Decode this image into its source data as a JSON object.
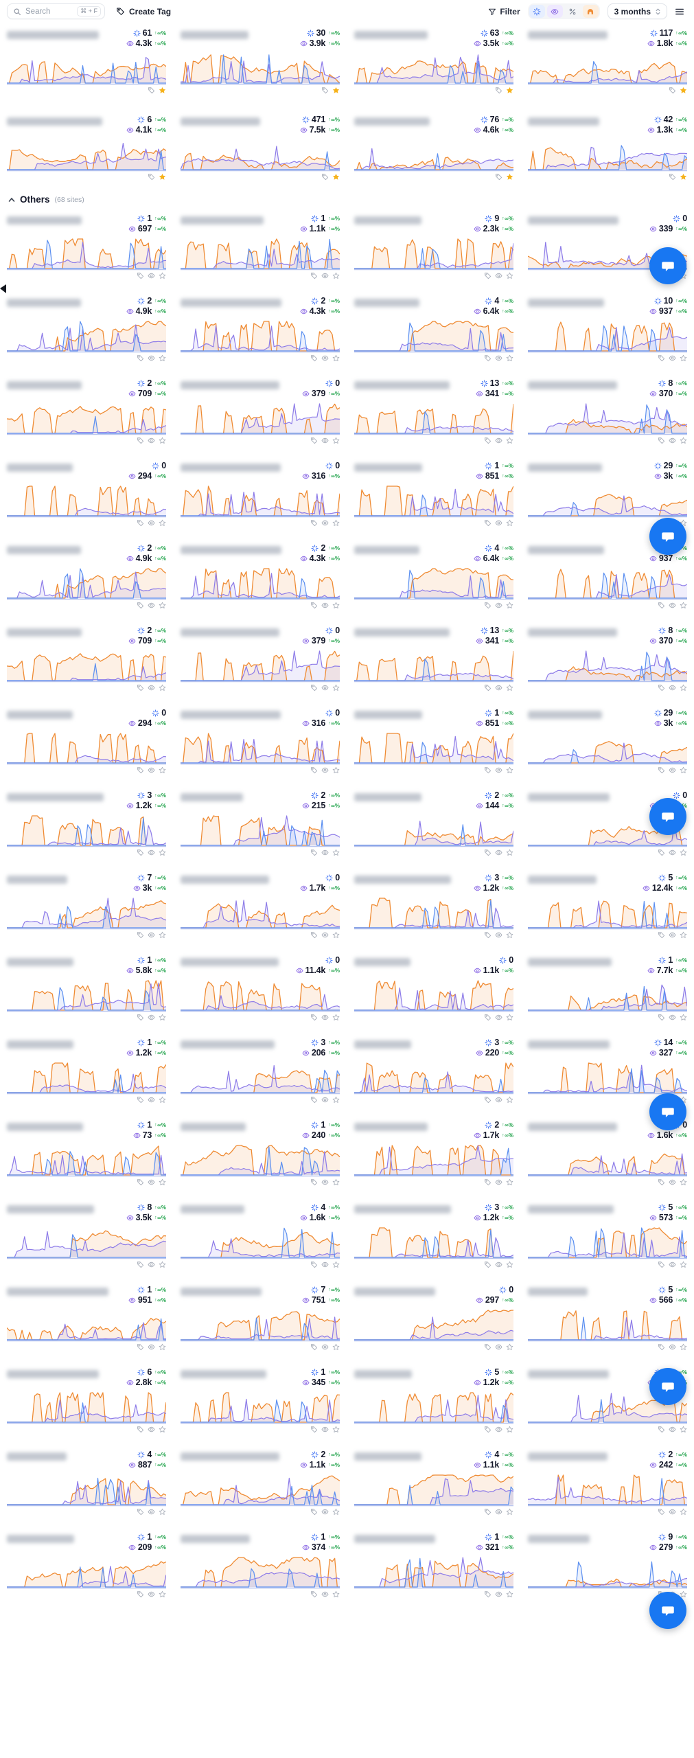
{
  "topbar": {
    "search": {
      "placeholder": "Search",
      "shortcut": "⌘ + F"
    },
    "create_tag_label": "Create Tag",
    "filter_label": "Filter",
    "view_toggles": [
      {
        "name": "sparkle-clicks",
        "color": "#4b7bf5",
        "bg": "#e7efff",
        "active": true
      },
      {
        "name": "eye-views",
        "color": "#8d6ce5",
        "bg": "#efe9ff",
        "active": true
      },
      {
        "name": "percent",
        "color": "#7c8494",
        "bg": "",
        "active": false
      },
      {
        "name": "crown",
        "color": "#ef8b33",
        "bg": "#fdeede",
        "active": true
      }
    ],
    "period_label": "3 months"
  },
  "meta": {
    "delta_arrow": "↑",
    "delta_value": "∞%",
    "delta_color": "#1fa24a"
  },
  "favorites": {
    "cards": [
      {
        "clicks": "61",
        "views": "4.3k"
      },
      {
        "clicks": "30",
        "views": "3.9k"
      },
      {
        "clicks": "63",
        "views": "3.5k"
      },
      {
        "clicks": "117",
        "views": "1.8k"
      },
      {
        "clicks": "6",
        "views": "4.1k"
      },
      {
        "clicks": "471",
        "views": "7.5k"
      },
      {
        "clicks": "76",
        "views": "4.6k"
      },
      {
        "clicks": "42",
        "views": "1.3k"
      }
    ]
  },
  "others": {
    "title": "Others",
    "count_label": "(68 sites)",
    "cards": [
      {
        "clicks": "1",
        "views": "697"
      },
      {
        "clicks": "1",
        "views": "1.1k"
      },
      {
        "clicks": "9",
        "views": "2.3k"
      },
      {
        "clicks": "0",
        "views": "339"
      },
      {
        "clicks": "2",
        "views": "4.9k"
      },
      {
        "clicks": "2",
        "views": "4.3k"
      },
      {
        "clicks": "4",
        "views": "6.4k"
      },
      {
        "clicks": "10",
        "views": "937"
      },
      {
        "clicks": "2",
        "views": "709"
      },
      {
        "clicks": "0",
        "views": "379"
      },
      {
        "clicks": "13",
        "views": "341"
      },
      {
        "clicks": "8",
        "views": "370"
      },
      {
        "clicks": "0",
        "views": "294"
      },
      {
        "clicks": "0",
        "views": "316"
      },
      {
        "clicks": "1",
        "views": "851"
      },
      {
        "clicks": "29",
        "views": "3k"
      },
      {
        "clicks": "2",
        "views": "4.9k"
      },
      {
        "clicks": "2",
        "views": "4.3k"
      },
      {
        "clicks": "4",
        "views": "6.4k"
      },
      {
        "clicks": "10",
        "views": "937"
      },
      {
        "clicks": "2",
        "views": "709"
      },
      {
        "clicks": "0",
        "views": "379"
      },
      {
        "clicks": "13",
        "views": "341"
      },
      {
        "clicks": "8",
        "views": "370"
      },
      {
        "clicks": "0",
        "views": "294"
      },
      {
        "clicks": "0",
        "views": "316"
      },
      {
        "clicks": "1",
        "views": "851"
      },
      {
        "clicks": "29",
        "views": "3k"
      },
      {
        "clicks": "3",
        "views": "1.2k"
      },
      {
        "clicks": "2",
        "views": "215"
      },
      {
        "clicks": "2",
        "views": "144"
      },
      {
        "clicks": "0",
        "views": "278"
      },
      {
        "clicks": "7",
        "views": "3k"
      },
      {
        "clicks": "0",
        "views": "1.7k"
      },
      {
        "clicks": "3",
        "views": "1.2k"
      },
      {
        "clicks": "5",
        "views": "12.4k"
      },
      {
        "clicks": "1",
        "views": "5.8k"
      },
      {
        "clicks": "0",
        "views": "11.4k"
      },
      {
        "clicks": "0",
        "views": "1.1k"
      },
      {
        "clicks": "1",
        "views": "7.7k"
      },
      {
        "clicks": "1",
        "views": "1.2k"
      },
      {
        "clicks": "3",
        "views": "206"
      },
      {
        "clicks": "3",
        "views": "220"
      },
      {
        "clicks": "14",
        "views": "327"
      },
      {
        "clicks": "1",
        "views": "73"
      },
      {
        "clicks": "1",
        "views": "240"
      },
      {
        "clicks": "2",
        "views": "1.7k"
      },
      {
        "clicks": "0",
        "views": "1.6k"
      },
      {
        "clicks": "8",
        "views": "3.5k"
      },
      {
        "clicks": "4",
        "views": "1.6k"
      },
      {
        "clicks": "3",
        "views": "1.2k"
      },
      {
        "clicks": "5",
        "views": "573"
      },
      {
        "clicks": "1",
        "views": "951"
      },
      {
        "clicks": "7",
        "views": "751"
      },
      {
        "clicks": "0",
        "views": "297"
      },
      {
        "clicks": "5",
        "views": "566"
      },
      {
        "clicks": "6",
        "views": "2.8k"
      },
      {
        "clicks": "1",
        "views": "345"
      },
      {
        "clicks": "5",
        "views": "1.2k"
      },
      {
        "clicks": "16",
        "views": "1.5k"
      },
      {
        "clicks": "4",
        "views": "887"
      },
      {
        "clicks": "2",
        "views": "1.1k"
      },
      {
        "clicks": "4",
        "views": "1.1k"
      },
      {
        "clicks": "2",
        "views": "242"
      },
      {
        "clicks": "1",
        "views": "209"
      },
      {
        "clicks": "1",
        "views": "374"
      },
      {
        "clicks": "1",
        "views": "321"
      },
      {
        "clicks": "9",
        "views": "279"
      }
    ]
  },
  "chart_colors": {
    "orange": "#ef8b33",
    "purple": "#8d7be8",
    "blue": "#5b8ff0",
    "baseline": "#b7c3ee"
  }
}
